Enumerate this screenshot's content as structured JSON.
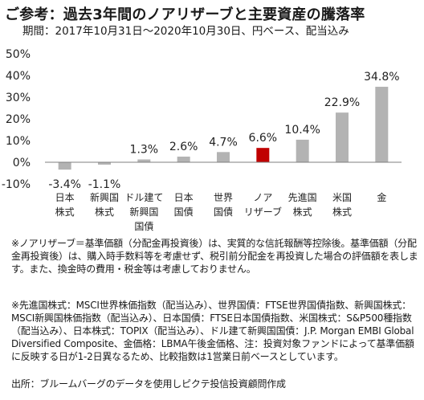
{
  "header": {
    "title": "ご参考：過去3年間のノアリザーブと主要資産の騰落率",
    "subtitle": "期間：2017年10月31日～2020年10月30日、円ベース、配当込み"
  },
  "chart_data": {
    "type": "bar",
    "categories": [
      [
        "日本",
        "株式"
      ],
      [
        "新興国",
        "株式"
      ],
      [
        "ドル建て",
        "新興国",
        "国債"
      ],
      [
        "日本",
        "国債"
      ],
      [
        "世界",
        "国債"
      ],
      [
        "ノア",
        "リザーブ"
      ],
      [
        "先進国",
        "株式"
      ],
      [
        "米国",
        "株式"
      ],
      [
        "金"
      ]
    ],
    "values": [
      -3.4,
      -1.1,
      1.3,
      2.6,
      4.7,
      6.6,
      10.4,
      22.9,
      34.8
    ],
    "value_labels": [
      "-3.4%",
      "-1.1%",
      "1.3%",
      "2.6%",
      "4.7%",
      "6.6%",
      "10.4%",
      "22.9%",
      "34.8%"
    ],
    "highlight_index": 5,
    "ylim": [
      -10,
      50
    ],
    "yticks": [
      -10,
      0,
      10,
      20,
      30,
      40,
      50
    ],
    "ytick_labels": [
      "-10%",
      "0%",
      "10%",
      "20%",
      "30%",
      "40%",
      "50%"
    ],
    "grid": false,
    "colors": {
      "bar": "#b3b3b3",
      "highlight": "#c00000",
      "axis": "#7f7f7f"
    }
  },
  "notes": {
    "note1": "※ノアリザーブ＝基準価額（分配金再投資後）は、実質的な信託報酬等控除後。基準価額（分配金再投資後）は、購入時手数料等を考慮せず、税引前分配金を再投資した場合の評価額を表します。また、換金時の費用・税金等は考慮しておりません。",
    "note2": "※先進国株式：MSCI世界株価指数（配当込み）、世界国債：FTSE世界国債指数、新興国株式：MSCI新興国株価指数（配当込み）、日本国債：FTSE日本国債指数、米国株式：S&P500種指数（配当込み）、日本株式：TOPIX（配当込み）、ドル建て新興国国債：J.P. Morgan EMBI Global Diversified Composite、金価格：LBMA午後金価格、注：投資対象ファンドによって基準価額に反映する日が1-2日異なるため、比較指数は1営業日前ベースとしています。",
    "source": "出所：ブルームバーグのデータを使用しピクテ投信投資顧問作成"
  }
}
